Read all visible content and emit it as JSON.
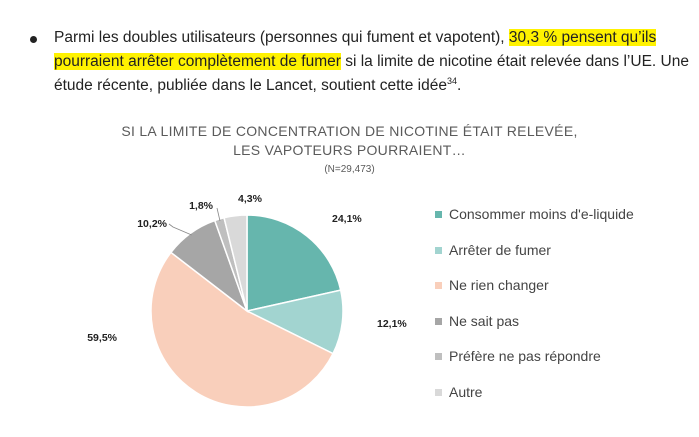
{
  "bullet": {
    "text_before": "Parmi les doubles utilisateurs (personnes qui fument et vapotent), ",
    "highlight": "30,3 % pensent qu’ils pourraient arrêter complètement de fumer",
    "text_after": " si la limite de nicotine était relevée dans l’UE. Une étude récente, publiée dans le Lancet, soutient cette idée",
    "footnote": "34",
    "end": "."
  },
  "chart_data": {
    "type": "pie",
    "title_line1": "SI LA LIMITE DE CONCENTRATION DE NICOTINE ÉTAIT RELEVÉE,",
    "title_line2": "LES VAPOTEURS POURRAIENT…",
    "sample": "(N=29,473)",
    "categories": [
      "Consommer moins d'e-liquide",
      "Arrêter de fumer",
      "Ne rien changer",
      "Ne sait pas",
      "Préfère ne pas répondre",
      "Autre"
    ],
    "values": [
      24.1,
      12.1,
      59.5,
      10.2,
      1.8,
      4.3
    ],
    "value_labels": [
      "24,1%",
      "12,1%",
      "59,5%",
      "10,2%",
      "1,8%",
      "4,3%"
    ],
    "colors": [
      "#66b6ad",
      "#a2d4d0",
      "#f9cfbb",
      "#a6a6a6",
      "#bfbfbf",
      "#d9d9d9"
    ],
    "legend_position": "right"
  }
}
